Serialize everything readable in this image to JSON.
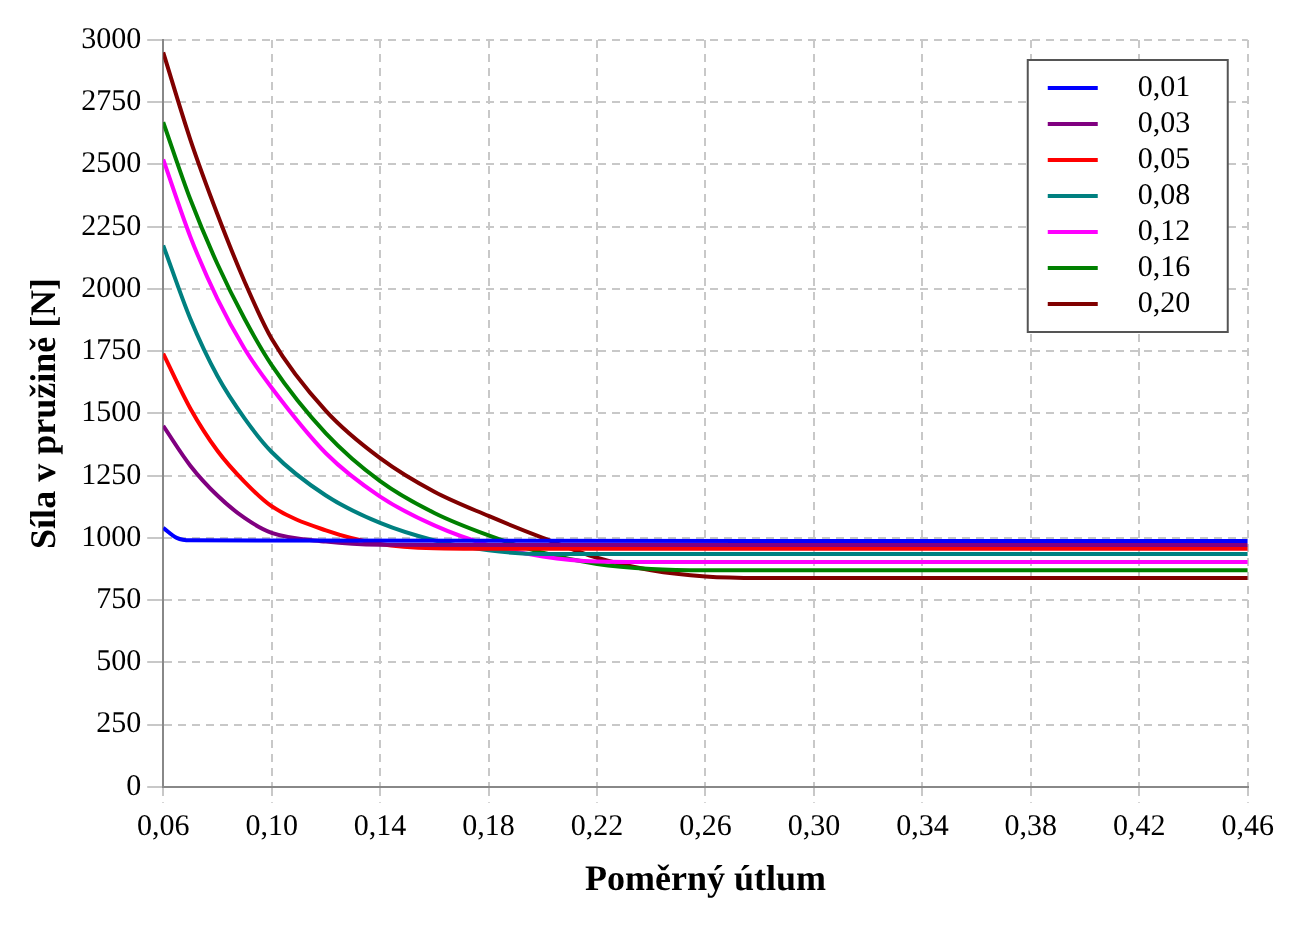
{
  "chart_data": {
    "type": "line",
    "xlabel": "Poměrný útlum",
    "ylabel": "Síla v pružině [N]",
    "xlim": [
      0.06,
      0.46
    ],
    "xticks": [
      {
        "value": 0.06,
        "label": "0,06"
      },
      {
        "value": 0.1,
        "label": "0,10"
      },
      {
        "value": 0.14,
        "label": "0,14"
      },
      {
        "value": 0.18,
        "label": "0,18"
      },
      {
        "value": 0.22,
        "label": "0,22"
      },
      {
        "value": 0.26,
        "label": "0,26"
      },
      {
        "value": 0.3,
        "label": "0,30"
      },
      {
        "value": 0.34,
        "label": "0,34"
      },
      {
        "value": 0.38,
        "label": "0,38"
      },
      {
        "value": 0.42,
        "label": "0,42"
      },
      {
        "value": 0.46,
        "label": "0,46"
      }
    ],
    "ylim": [
      0,
      3000
    ],
    "yticks": [
      0,
      250,
      500,
      750,
      1000,
      1250,
      1500,
      1750,
      2000,
      2250,
      2500,
      2750,
      3000
    ],
    "grid": true,
    "legend": "top right",
    "marker": "none",
    "line_style": "solid",
    "series": [
      {
        "name": "0,01",
        "color": "#0000ff",
        "x": [
          0.06,
          0.065,
          0.07,
          0.46
        ],
        "values": [
          1040,
          1000,
          990,
          987
        ]
      },
      {
        "name": "0,03",
        "color": "#800080",
        "x": [
          0.06,
          0.07,
          0.08,
          0.09,
          0.1,
          0.12,
          0.14,
          0.16,
          0.46
        ],
        "values": [
          1450,
          1290,
          1170,
          1080,
          1020,
          985,
          972,
          971,
          971
        ]
      },
      {
        "name": "0,05",
        "color": "#ff0000",
        "x": [
          0.06,
          0.07,
          0.08,
          0.09,
          0.1,
          0.12,
          0.14,
          0.16,
          0.18,
          0.46
        ],
        "values": [
          1740,
          1520,
          1350,
          1225,
          1127,
          1030,
          975,
          958,
          956,
          956
        ]
      },
      {
        "name": "0,08",
        "color": "#008080",
        "x": [
          0.06,
          0.07,
          0.08,
          0.09,
          0.1,
          0.12,
          0.14,
          0.16,
          0.18,
          0.2,
          0.22,
          0.46
        ],
        "values": [
          2175,
          1880,
          1650,
          1480,
          1345,
          1170,
          1060,
          990,
          950,
          935,
          935,
          935
        ]
      },
      {
        "name": "0,12",
        "color": "#ff00ff",
        "x": [
          0.06,
          0.07,
          0.08,
          0.09,
          0.1,
          0.12,
          0.14,
          0.16,
          0.18,
          0.2,
          0.22,
          0.24,
          0.46
        ],
        "values": [
          2520,
          2210,
          1960,
          1760,
          1603,
          1340,
          1166,
          1050,
          971,
          925,
          905,
          903,
          903
        ]
      },
      {
        "name": "0,16",
        "color": "#008000",
        "x": [
          0.06,
          0.07,
          0.08,
          0.09,
          0.1,
          0.12,
          0.14,
          0.16,
          0.18,
          0.2,
          0.22,
          0.24,
          0.26,
          0.28,
          0.46
        ],
        "values": [
          2670,
          2360,
          2100,
          1880,
          1694,
          1420,
          1228,
          1100,
          1010,
          940,
          895,
          875,
          870,
          870,
          870
        ]
      },
      {
        "name": "0,20",
        "color": "#800000",
        "x": [
          0.06,
          0.07,
          0.08,
          0.09,
          0.1,
          0.12,
          0.14,
          0.16,
          0.18,
          0.2,
          0.22,
          0.24,
          0.26,
          0.28,
          0.46
        ],
        "values": [
          2950,
          2600,
          2300,
          2030,
          1800,
          1510,
          1320,
          1185,
          1088,
          1000,
          920,
          870,
          845,
          839,
          839
        ]
      }
    ]
  }
}
